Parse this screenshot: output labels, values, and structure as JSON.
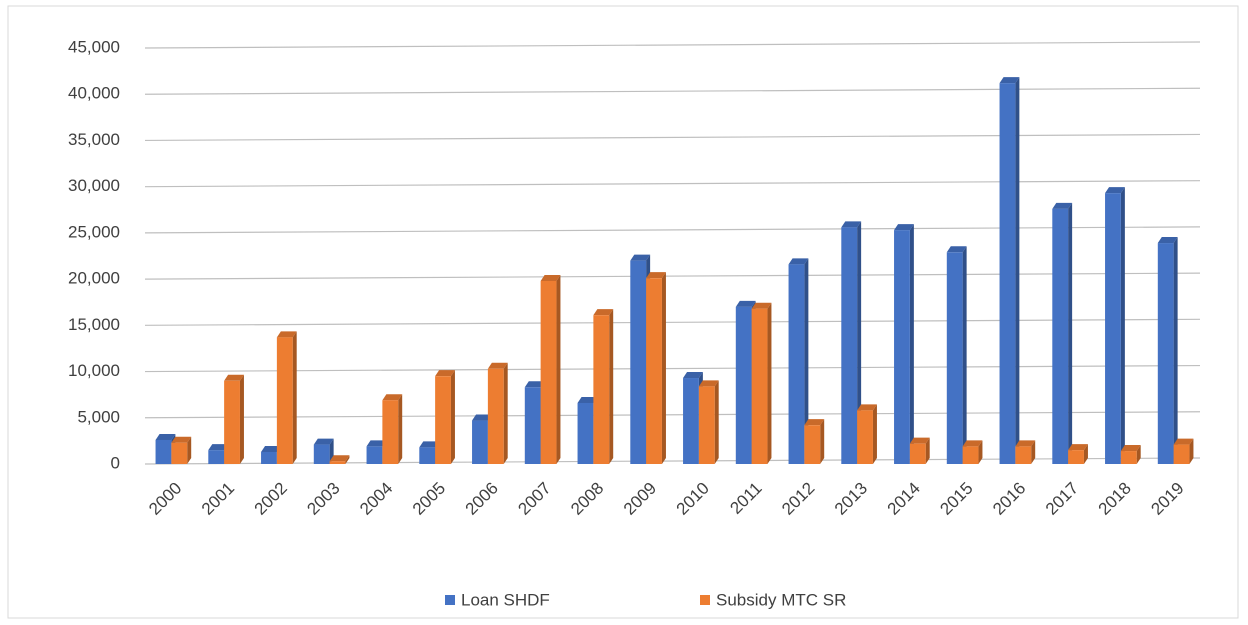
{
  "chart_data": {
    "type": "bar",
    "categories": [
      "2000",
      "2001",
      "2002",
      "2003",
      "2004",
      "2005",
      "2006",
      "2007",
      "2008",
      "2009",
      "2010",
      "2011",
      "2012",
      "2013",
      "2014",
      "2015",
      "2016",
      "2017",
      "2018",
      "2019"
    ],
    "series": [
      {
        "name": "Loan SHDF",
        "color": "#4472c4",
        "values": [
          2600,
          1500,
          1300,
          2100,
          1900,
          1800,
          4700,
          8300,
          6600,
          22000,
          9300,
          17000,
          21600,
          25600,
          25300,
          22900,
          41200,
          27600,
          29300,
          23900
        ]
      },
      {
        "name": "Subsidy MTC SR",
        "color": "#ed7d31",
        "values": [
          2300,
          9000,
          13700,
          300,
          6900,
          9500,
          10300,
          19800,
          16100,
          20100,
          8400,
          16800,
          4200,
          5800,
          2200,
          1900,
          1900,
          1500,
          1400,
          2100
        ]
      }
    ],
    "ylim": [
      0,
      45000
    ],
    "yticks": [
      0,
      {
        "value": 5000,
        "label": "5,000"
      },
      {
        "value": 10000,
        "label": "10,000"
      },
      {
        "value": 15000,
        "label": "15,000"
      },
      {
        "value": 20000,
        "label": "20,000"
      },
      {
        "value": 25000,
        "label": "25,000"
      },
      {
        "value": 30000,
        "label": "30,000"
      },
      {
        "value": 35000,
        "label": "35,000"
      },
      {
        "value": 40000,
        "label": "40,000"
      },
      {
        "value": 45000,
        "label": "45,000"
      }
    ],
    "grid": true,
    "legend": "bottom"
  }
}
